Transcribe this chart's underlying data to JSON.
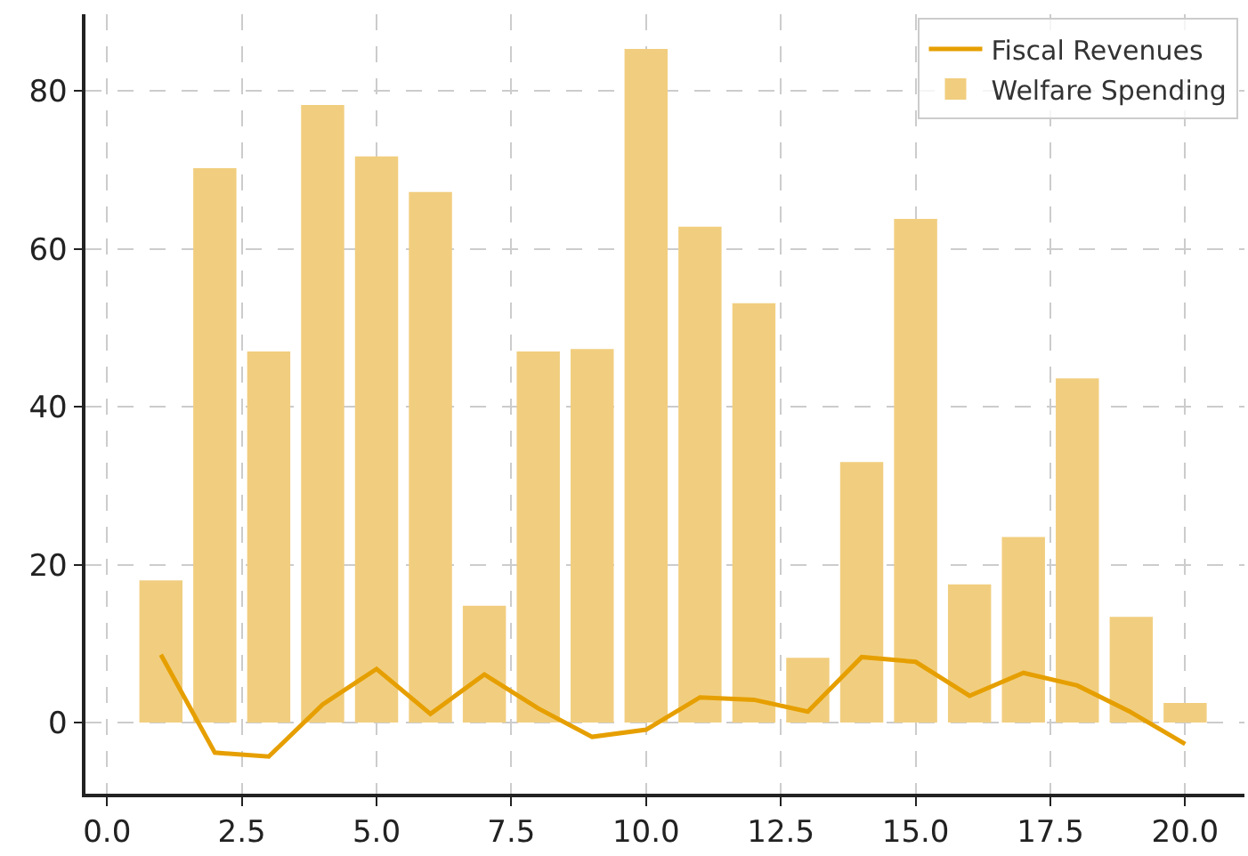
{
  "chart_data": {
    "type": "bar",
    "x": [
      1,
      2,
      3,
      4,
      5,
      6,
      7,
      8,
      9,
      10,
      11,
      12,
      13,
      14,
      15,
      16,
      17,
      18,
      19,
      20
    ],
    "series": [
      {
        "name": "Fiscal Revenues",
        "type": "line",
        "color": "#e69f00",
        "values": [
          8.6,
          -3.8,
          -4.3,
          2.3,
          6.8,
          1.1,
          6.1,
          1.8,
          -1.8,
          -0.9,
          3.2,
          2.9,
          1.4,
          8.3,
          7.7,
          3.4,
          6.3,
          4.7,
          1.3,
          -2.7
        ]
      },
      {
        "name": "Welfare Spending",
        "color": "#f1ce7f",
        "values": [
          18,
          70.2,
          47,
          78.2,
          71.7,
          67.2,
          14.8,
          47,
          47.3,
          85.3,
          62.8,
          53.1,
          8.2,
          33,
          63.8,
          17.5,
          23.5,
          43.6,
          13.4,
          2.5
        ]
      }
    ],
    "xlim": [
      -0.4,
      21.1
    ],
    "xticks": [
      {
        "value": 0,
        "label": "0.0"
      },
      {
        "value": 2.5,
        "label": "2.5"
      },
      {
        "value": 5,
        "label": "5.0"
      },
      {
        "value": 7.5,
        "label": "7.5"
      },
      {
        "value": 10,
        "label": "10.0"
      },
      {
        "value": 12.5,
        "label": "12.5"
      },
      {
        "value": 15,
        "label": "15.0"
      },
      {
        "value": 17.5,
        "label": "17.5"
      },
      {
        "value": 20,
        "label": "20.0"
      }
    ],
    "ylim": [
      -9,
      89.7
    ],
    "yticks": [
      0,
      20,
      40,
      60,
      80
    ],
    "grid": true,
    "legend": "top right",
    "line_style": "solid",
    "marker": "none"
  }
}
